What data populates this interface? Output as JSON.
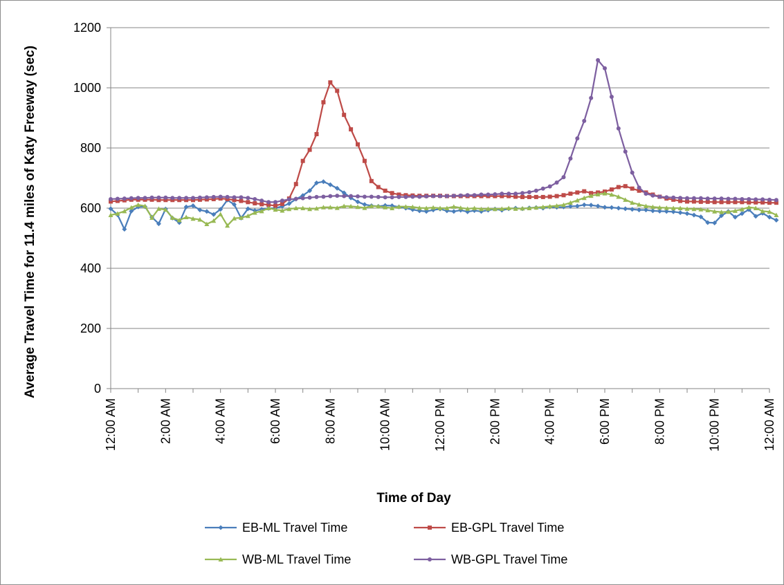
{
  "chart_data": {
    "type": "line",
    "title": "",
    "xlabel": "Time of Day",
    "ylabel": "Average Travel Time for 11.4 miles of Katy Freeway (sec)",
    "ylim": [
      0,
      1200
    ],
    "yticks": [
      "0",
      "200",
      "400",
      "600",
      "800",
      "1000",
      "1200"
    ],
    "x_unit": "hours since 12:00 AM, 15-minute intervals",
    "xlim": [
      0,
      24
    ],
    "xticks": [
      {
        "hour": 0,
        "label": "12:00 AM"
      },
      {
        "hour": 2,
        "label": "2:00 AM"
      },
      {
        "hour": 4,
        "label": "4:00 AM"
      },
      {
        "hour": 6,
        "label": "6:00 AM"
      },
      {
        "hour": 8,
        "label": "8:00 AM"
      },
      {
        "hour": 10,
        "label": "10:00 AM"
      },
      {
        "hour": 12,
        "label": "12:00 PM"
      },
      {
        "hour": 14,
        "label": "2:00 PM"
      },
      {
        "hour": 16,
        "label": "4:00 PM"
      },
      {
        "hour": 18,
        "label": "6:00 PM"
      },
      {
        "hour": 20,
        "label": "8:00 PM"
      },
      {
        "hour": 22,
        "label": "10:00 PM"
      },
      {
        "hour": 24,
        "label": "12:00 AM"
      }
    ],
    "grid": "horizontal",
    "legend_position": "bottom",
    "x_start_hour": 0,
    "x_step_hours": 0.25,
    "series": [
      {
        "name": "EB-ML Travel Time",
        "color": "#4a7ebb",
        "marker": "diamond",
        "values": [
          598,
          578,
          530,
          590,
          604,
          605,
          570,
          548,
          597,
          567,
          552,
          604,
          608,
          594,
          589,
          579,
          596,
          627,
          612,
          567,
          598,
          592,
          596,
          599,
          600,
          606,
          615,
          630,
          642,
          658,
          684,
          688,
          678,
          666,
          651,
          634,
          621,
          612,
          608,
          606,
          609,
          608,
          604,
          600,
          595,
          591,
          589,
          594,
          597,
          591,
          589,
          593,
          588,
          592,
          589,
          593,
          597,
          593,
          598,
          600,
          598,
          601,
          602,
          600,
          604,
          603,
          604,
          606,
          607,
          611,
          610,
          607,
          603,
          602,
          600,
          598,
          596,
          594,
          594,
          591,
          590,
          589,
          588,
          585,
          582,
          577,
          571,
          552,
          551,
          575,
          589,
          570,
          582,
          595,
          573,
          583,
          570,
          560
        ]
      },
      {
        "name": "EB-GPL Travel Time",
        "color": "#be4b48",
        "marker": "square",
        "values": [
          622,
          624,
          626,
          628,
          628,
          628,
          628,
          627,
          627,
          627,
          627,
          627,
          627,
          628,
          629,
          630,
          632,
          630,
          627,
          624,
          620,
          616,
          613,
          611,
          608,
          614,
          632,
          680,
          757,
          794,
          846,
          952,
          1018,
          990,
          910,
          862,
          812,
          757,
          690,
          670,
          658,
          650,
          645,
          643,
          642,
          641,
          641,
          641,
          641,
          640,
          640,
          640,
          640,
          640,
          640,
          640,
          640,
          640,
          640,
          638,
          637,
          637,
          637,
          637,
          638,
          640,
          643,
          648,
          652,
          656,
          650,
          652,
          655,
          662,
          670,
          673,
          665,
          658,
          652,
          645,
          638,
          632,
          628,
          624,
          622,
          622,
          621,
          621,
          620,
          620,
          620,
          620,
          620,
          619,
          619,
          619,
          618,
          618
        ]
      },
      {
        "name": "WB-ML Travel Time",
        "color": "#98b954",
        "marker": "triangle",
        "values": [
          577,
          582,
          590,
          602,
          611,
          607,
          568,
          598,
          595,
          568,
          560,
          570,
          565,
          562,
          547,
          558,
          580,
          542,
          566,
          568,
          574,
          585,
          590,
          600,
          595,
          592,
          597,
          600,
          600,
          597,
          599,
          603,
          603,
          601,
          607,
          606,
          604,
          601,
          607,
          606,
          603,
          600,
          605,
          605,
          604,
          601,
          600,
          602,
          600,
          600,
          605,
          601,
          598,
          600,
          597,
          598,
          597,
          598,
          600,
          598,
          599,
          600,
          602,
          604,
          606,
          608,
          611,
          618,
          626,
          634,
          641,
          646,
          649,
          645,
          638,
          628,
          618,
          612,
          607,
          604,
          602,
          601,
          600,
          600,
          598,
          597,
          596,
          593,
          589,
          587,
          588,
          591,
          596,
          603,
          600,
          590,
          588,
          577
        ]
      },
      {
        "name": "WB-GPL Travel Time",
        "color": "#7d5fa0",
        "marker": "circle",
        "values": [
          630,
          631,
          632,
          633,
          634,
          634,
          635,
          635,
          635,
          634,
          634,
          634,
          634,
          635,
          636,
          637,
          638,
          637,
          636,
          636,
          634,
          630,
          625,
          620,
          620,
          625,
          629,
          631,
          633,
          635,
          637,
          638,
          640,
          641,
          640,
          640,
          639,
          638,
          638,
          637,
          636,
          636,
          637,
          637,
          638,
          638,
          639,
          640,
          640,
          640,
          641,
          642,
          643,
          643,
          645,
          645,
          646,
          648,
          648,
          648,
          650,
          653,
          658,
          665,
          672,
          685,
          703,
          765,
          832,
          890,
          966,
          1092,
          1065,
          970,
          865,
          788,
          718,
          668,
          648,
          642,
          638,
          636,
          635,
          634,
          633,
          633,
          633,
          632,
          632,
          632,
          631,
          631,
          630,
          630,
          629,
          629,
          628,
          627
        ]
      }
    ]
  }
}
